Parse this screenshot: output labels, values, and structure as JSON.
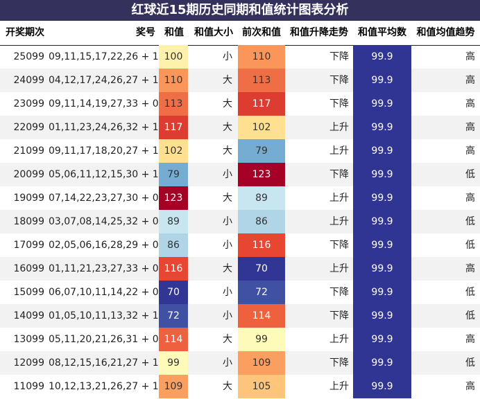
{
  "title": "红球近15期历史同期和值统计图表分析",
  "columns": {
    "period": "开奖期次",
    "numbers": "奖号",
    "sum": "和值",
    "size": "和值大小",
    "prev_sum": "前次和值",
    "trend": "和值升降走势",
    "avg": "和值平均数",
    "avg_trend": "和值均值趋势"
  },
  "rows": [
    {
      "period": "25099",
      "numbers": "09,11,15,17,22,26 + 14",
      "sum": "100",
      "size": "小",
      "prev_sum": "110",
      "trend": "下降",
      "avg": "99.9",
      "avg_trend": "高"
    },
    {
      "period": "24099",
      "numbers": "04,12,17,24,26,27 + 16",
      "sum": "110",
      "size": "大",
      "prev_sum": "113",
      "trend": "下降",
      "avg": "99.9",
      "avg_trend": "高"
    },
    {
      "period": "23099",
      "numbers": "09,11,14,19,27,33 + 05",
      "sum": "113",
      "size": "大",
      "prev_sum": "117",
      "trend": "下降",
      "avg": "99.9",
      "avg_trend": "高"
    },
    {
      "period": "22099",
      "numbers": "01,11,23,24,26,32 + 15",
      "sum": "117",
      "size": "大",
      "prev_sum": "102",
      "trend": "上升",
      "avg": "99.9",
      "avg_trend": "高"
    },
    {
      "period": "21099",
      "numbers": "09,11,17,18,20,27 + 15",
      "sum": "102",
      "size": "大",
      "prev_sum": "79",
      "trend": "上升",
      "avg": "99.9",
      "avg_trend": "高"
    },
    {
      "period": "20099",
      "numbers": "05,06,11,12,15,30 + 12",
      "sum": "79",
      "size": "小",
      "prev_sum": "123",
      "trend": "下降",
      "avg": "99.9",
      "avg_trend": "低"
    },
    {
      "period": "19099",
      "numbers": "07,14,22,23,27,30 + 08",
      "sum": "123",
      "size": "大",
      "prev_sum": "89",
      "trend": "上升",
      "avg": "99.9",
      "avg_trend": "高"
    },
    {
      "period": "18099",
      "numbers": "03,07,08,14,25,32 + 06",
      "sum": "89",
      "size": "小",
      "prev_sum": "86",
      "trend": "上升",
      "avg": "99.9",
      "avg_trend": "低"
    },
    {
      "period": "17099",
      "numbers": "02,05,06,16,28,29 + 04",
      "sum": "86",
      "size": "小",
      "prev_sum": "116",
      "trend": "下降",
      "avg": "99.9",
      "avg_trend": "低"
    },
    {
      "period": "16099",
      "numbers": "01,11,21,23,27,33 + 06",
      "sum": "116",
      "size": "大",
      "prev_sum": "70",
      "trend": "上升",
      "avg": "99.9",
      "avg_trend": "高"
    },
    {
      "period": "15099",
      "numbers": "06,07,10,11,14,22 + 09",
      "sum": "70",
      "size": "小",
      "prev_sum": "72",
      "trend": "下降",
      "avg": "99.9",
      "avg_trend": "低"
    },
    {
      "period": "14099",
      "numbers": "01,05,10,11,13,32 + 14",
      "sum": "72",
      "size": "小",
      "prev_sum": "114",
      "trend": "下降",
      "avg": "99.9",
      "avg_trend": "低"
    },
    {
      "period": "13099",
      "numbers": "05,11,20,21,26,31 + 03",
      "sum": "114",
      "size": "大",
      "prev_sum": "99",
      "trend": "上升",
      "avg": "99.9",
      "avg_trend": "高"
    },
    {
      "period": "12099",
      "numbers": "08,12,15,16,21,27 + 16",
      "sum": "99",
      "size": "小",
      "prev_sum": "109",
      "trend": "下降",
      "avg": "99.9",
      "avg_trend": "低"
    },
    {
      "period": "11099",
      "numbers": "10,12,13,21,26,27 + 14",
      "sum": "109",
      "size": "大",
      "prev_sum": "105",
      "trend": "上升",
      "avg": "99.9",
      "avg_trend": "高"
    }
  ],
  "chart_data": {
    "type": "table",
    "title": "红球近15期历史同期和值统计图表分析",
    "columns": [
      "开奖期次",
      "奖号",
      "和值",
      "和值大小",
      "前次和值",
      "和值升降走势",
      "和值平均数",
      "和值均值趋势"
    ],
    "periods": [
      "25099",
      "24099",
      "23099",
      "22099",
      "21099",
      "20099",
      "19099",
      "18099",
      "17099",
      "16099",
      "15099",
      "14099",
      "13099",
      "12099",
      "11099"
    ],
    "sum_values": [
      100,
      110,
      113,
      117,
      102,
      79,
      123,
      89,
      86,
      116,
      70,
      72,
      114,
      99,
      109
    ],
    "prev_sum_values": [
      110,
      113,
      117,
      102,
      79,
      123,
      89,
      86,
      116,
      70,
      72,
      114,
      99,
      109,
      105
    ],
    "average": 99.9,
    "heat_colors": {
      "avg_cell": "#303593"
    }
  }
}
